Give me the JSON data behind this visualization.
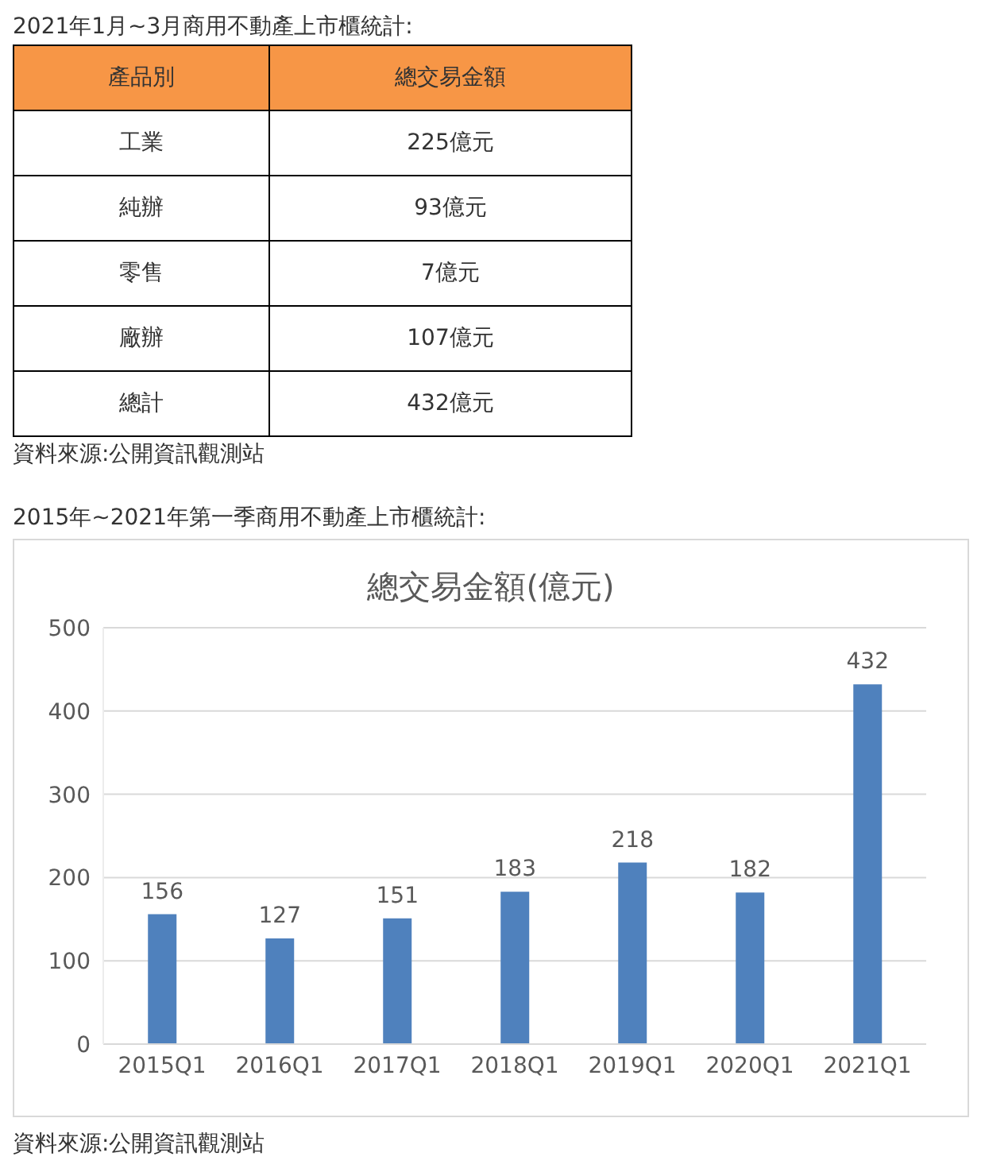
{
  "chart_data": [
    {
      "type": "other",
      "title": "2021年1月~3月商用不動產上市櫃統計:",
      "xlabel": "產品別",
      "ylabel": "總交易金額",
      "categories": [
        "工業",
        "純辦",
        "零售",
        "廠辦",
        "總計"
      ],
      "value_labels": [
        "225億元",
        "93億元",
        "7億元",
        "107億元",
        "432億元"
      ],
      "color": "#f79646",
      "annotations": [
        "資料來源:公開資訊觀測站"
      ]
    },
    {
      "type": "bar",
      "title": "2015年~2021年第一季商用不動產上市櫃統計:",
      "subtitle": "總交易金額(億元)",
      "categories": [
        "2015Q1",
        "2016Q1",
        "2017Q1",
        "2018Q1",
        "2019Q1",
        "2020Q1",
        "2021Q1"
      ],
      "values": [
        156,
        127,
        151,
        183,
        218,
        182,
        432
      ],
      "color": "#4f81bd",
      "ylim": [
        0,
        500
      ],
      "yticks": [
        0,
        100,
        200,
        300,
        400,
        500
      ],
      "grid": "y",
      "data_labels": true,
      "annotations": [
        "資料來源:公開資訊觀測站"
      ]
    }
  ]
}
